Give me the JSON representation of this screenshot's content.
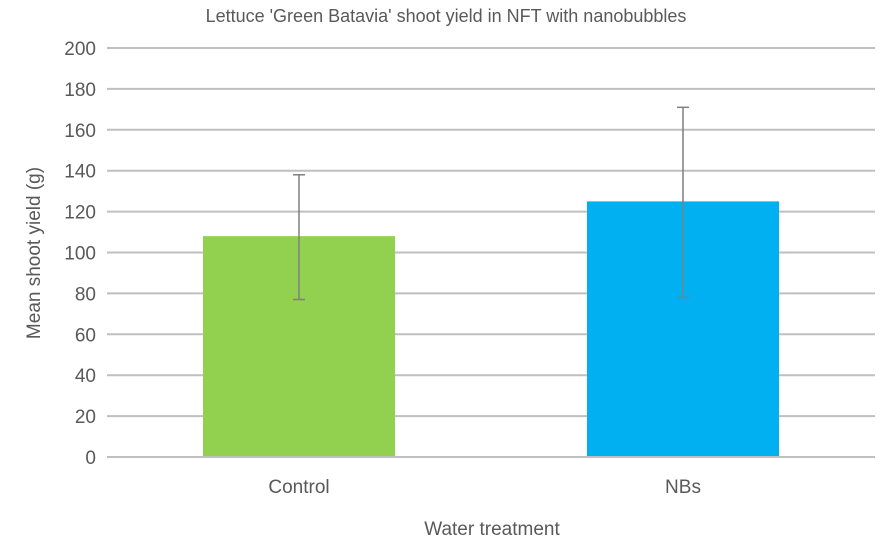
{
  "chart_data": {
    "type": "bar",
    "title": "Lettuce 'Green Batavia' shoot yield in NFT with nanobubbles",
    "xlabel": "Water treatment",
    "ylabel": "Mean shoot yield (g)",
    "categories": [
      "Control",
      "NBs"
    ],
    "values": [
      108,
      125
    ],
    "error_low": [
      77,
      78
    ],
    "error_high": [
      138,
      171
    ],
    "colors": [
      "#92d050",
      "#00b0f0"
    ],
    "ylim": [
      0,
      200
    ],
    "yticks": [
      0,
      20,
      40,
      60,
      80,
      100,
      120,
      140,
      160,
      180,
      200
    ],
    "grid": true,
    "legend": "none"
  }
}
